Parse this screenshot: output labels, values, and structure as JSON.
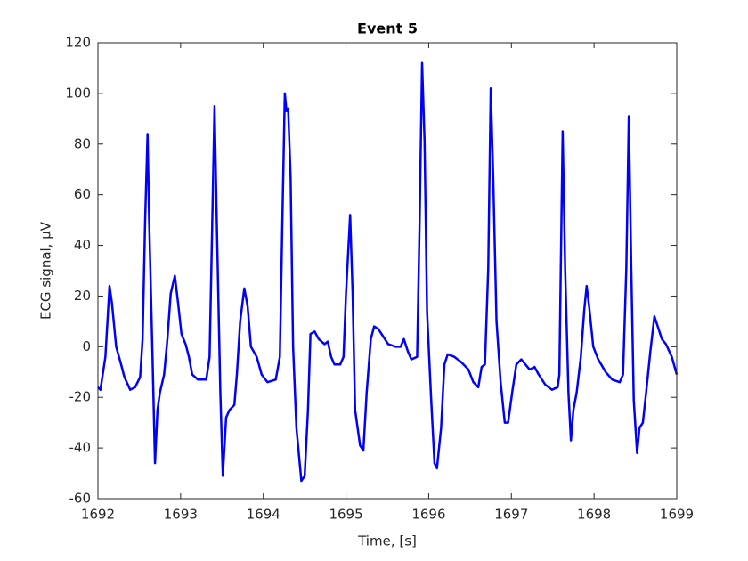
{
  "chart_data": {
    "type": "line",
    "title": "Event 5",
    "x_label": "Time, [s]",
    "y_label": "ECG signal, μV",
    "color": "#0000ff",
    "xlim": [
      1692,
      1699
    ],
    "xticks": [
      1692,
      1693,
      1694,
      1695,
      1696,
      1697,
      1698,
      1699
    ],
    "ylim": [
      -60,
      120
    ],
    "yticks": [
      -60,
      -40,
      -20,
      0,
      20,
      40,
      60,
      80,
      100,
      120
    ],
    "grid": false,
    "x": [
      1692,
      1692.03,
      1692.09,
      1692.14,
      1692.17,
      1692.22,
      1692.28,
      1692.32,
      1692.39,
      1692.45,
      1692.51,
      1692.54,
      1692.57,
      1692.6,
      1692.62,
      1692.66,
      1692.69,
      1692.72,
      1692.75,
      1692.8,
      1692.84,
      1692.88,
      1692.93,
      1692.97,
      1693.01,
      1693.06,
      1693.1,
      1693.14,
      1693.21,
      1693.31,
      1693.35,
      1693.38,
      1693.41,
      1693.44,
      1693.48,
      1693.51,
      1693.55,
      1693.59,
      1693.65,
      1693.68,
      1693.72,
      1693.77,
      1693.81,
      1693.85,
      1693.92,
      1693.98,
      1694.05,
      1694.15,
      1694.2,
      1694.23,
      1694.26,
      1694.28,
      1694.3,
      1694.33,
      1694.36,
      1694.4,
      1694.46,
      1694.5,
      1694.54,
      1694.57,
      1694.62,
      1694.67,
      1694.74,
      1694.78,
      1694.82,
      1694.86,
      1694.93,
      1694.97,
      1695,
      1695.05,
      1695.08,
      1695.11,
      1695.17,
      1695.21,
      1695.25,
      1695.3,
      1695.34,
      1695.39,
      1695.45,
      1695.51,
      1695.6,
      1695.66,
      1695.7,
      1695.75,
      1695.79,
      1695.86,
      1695.89,
      1695.92,
      1695.95,
      1695.98,
      1696.03,
      1696.07,
      1696.1,
      1696.15,
      1696.19,
      1696.23,
      1696.31,
      1696.39,
      1696.48,
      1696.54,
      1696.6,
      1696.64,
      1696.68,
      1696.72,
      1696.75,
      1696.78,
      1696.82,
      1696.87,
      1696.92,
      1696.96,
      1697.01,
      1697.06,
      1697.12,
      1697.17,
      1697.22,
      1697.28,
      1697.33,
      1697.41,
      1697.49,
      1697.56,
      1697.58,
      1697.62,
      1697.65,
      1697.69,
      1697.72,
      1697.75,
      1697.79,
      1697.84,
      1697.88,
      1697.91,
      1697.94,
      1697.99,
      1698.05,
      1698.14,
      1698.22,
      1698.31,
      1698.35,
      1698.39,
      1698.42,
      1698.45,
      1698.48,
      1698.52,
      1698.55,
      1698.59,
      1698.63,
      1698.68,
      1698.73,
      1698.77,
      1698.82,
      1698.87,
      1698.94,
      1699
    ],
    "values": [
      -16,
      -17,
      -4,
      24,
      17,
      0,
      -7,
      -12,
      -17,
      -16,
      -12,
      3,
      49,
      84,
      49,
      -4,
      -46,
      -25,
      -18,
      -11,
      3,
      21,
      28,
      17,
      5,
      1,
      -4,
      -11,
      -13,
      -13,
      -4,
      45,
      95,
      45,
      -18,
      -51,
      -28,
      -25,
      -23,
      -11,
      10,
      23,
      16,
      0,
      -4,
      -11,
      -14,
      -13,
      -4,
      49,
      100,
      93,
      94,
      67,
      0,
      -32,
      -53,
      -51,
      -25,
      5,
      6,
      3,
      1,
      2,
      -4,
      -7,
      -7,
      -4,
      21,
      52,
      21,
      -25,
      -39,
      -41,
      -18,
      3,
      8,
      7,
      4,
      1,
      0,
      0,
      3,
      -2,
      -5,
      -4,
      49,
      112,
      81,
      14,
      -21,
      -46,
      -48,
      -32,
      -7,
      -3,
      -4,
      -6,
      -9,
      -14,
      -16,
      -8,
      -7,
      31,
      102,
      67,
      10,
      -14,
      -30,
      -30,
      -18,
      -7,
      -5,
      -7,
      -9,
      -8,
      -11,
      -15,
      -17,
      -16,
      -11,
      85,
      31,
      -18,
      -37,
      -25,
      -18,
      -4,
      14,
      24,
      16,
      0,
      -5,
      -10,
      -13,
      -14,
      -11,
      31,
      91,
      31,
      -21,
      -42,
      -32,
      -30,
      -18,
      -2,
      12,
      8,
      3,
      1,
      -4,
      -11
    ]
  }
}
